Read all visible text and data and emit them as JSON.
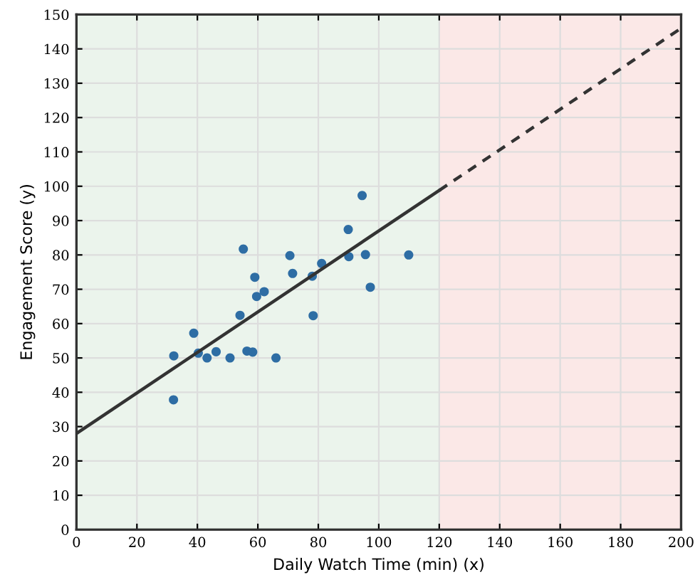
{
  "chart_data": {
    "type": "scatter",
    "xlabel": "Daily Watch Time (min) (x)",
    "ylabel": "Engagement Score (y)",
    "xlim": [
      0,
      200
    ],
    "ylim": [
      0,
      150
    ],
    "xticks": [
      0,
      20,
      40,
      60,
      80,
      100,
      120,
      140,
      160,
      180,
      200
    ],
    "yticks": [
      0,
      10,
      20,
      30,
      40,
      50,
      60,
      70,
      80,
      90,
      100,
      110,
      120,
      130,
      140,
      150
    ],
    "grid": true,
    "bands": [
      {
        "axis": "x",
        "from": 0,
        "to": 120,
        "color": "#ebf4ec"
      },
      {
        "axis": "x",
        "from": 120,
        "to": 200,
        "color": "#fbe8e7"
      }
    ],
    "series": [
      {
        "color": "#2e6da4",
        "marker": "circle",
        "x": [
          32.2,
          32.1,
          38.8,
          40.3,
          43.2,
          46.2,
          50.8,
          54.1,
          55.2,
          56.4,
          58.3,
          59.0,
          59.6,
          62.1,
          66.0,
          70.6,
          71.5,
          78.0,
          78.3,
          81.1,
          89.9,
          90.1,
          94.5,
          95.6,
          97.2,
          109.9
        ],
        "values": [
          50.6,
          37.8,
          57.2,
          51.4,
          50.0,
          51.8,
          50.0,
          62.4,
          81.7,
          52.0,
          51.7,
          73.5,
          67.9,
          69.3,
          50.0,
          79.8,
          74.6,
          73.8,
          62.3,
          77.5,
          87.4,
          79.5,
          97.3,
          80.1,
          70.6,
          80.0
        ]
      },
      {
        "type": "line",
        "color": "#333333",
        "line_style": "solid",
        "x": [
          0,
          120
        ],
        "values": [
          28,
          98.8
        ]
      },
      {
        "type": "line",
        "color": "#333333",
        "line_style": "dashed",
        "x": [
          120,
          200
        ],
        "values": [
          98.8,
          146
        ]
      }
    ]
  }
}
